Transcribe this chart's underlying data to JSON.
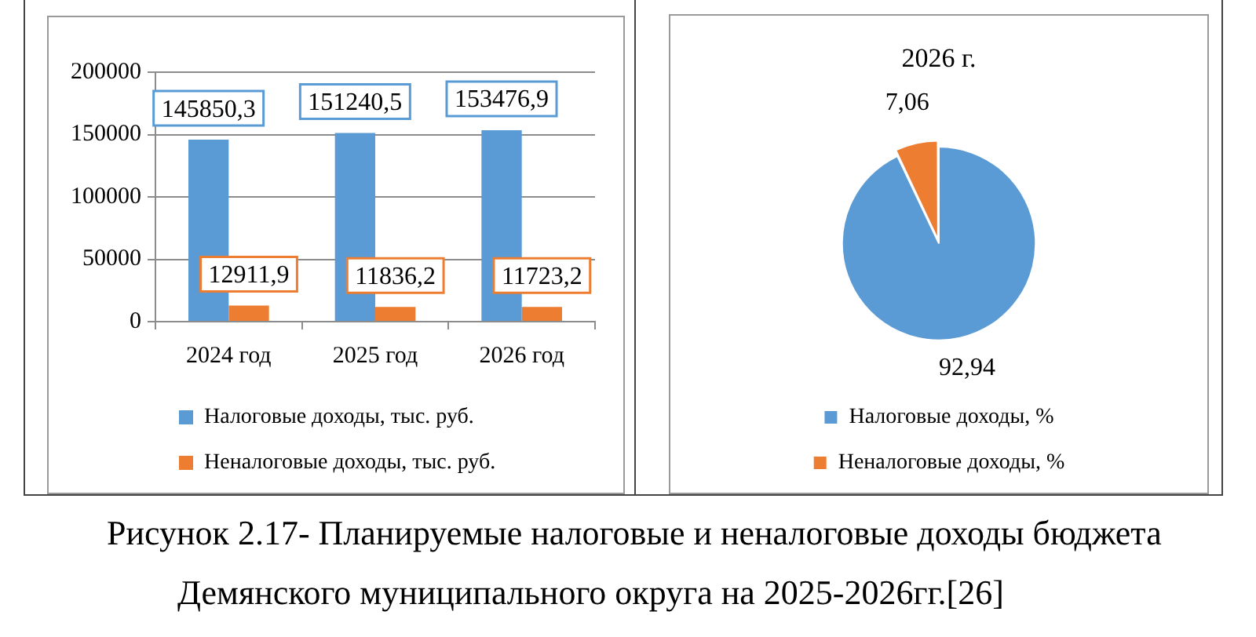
{
  "chart_data": [
    {
      "type": "bar",
      "categories": [
        "2024 год",
        "2025 год",
        "2026 год"
      ],
      "series": [
        {
          "name": "Налоговые доходы, тыс. руб.",
          "color": "#5b9bd5",
          "values": [
            145850.3,
            151240.5,
            153476.9
          ],
          "value_labels": [
            "145850,3",
            "151240,5",
            "153476,9"
          ]
        },
        {
          "name": "Неналоговые доходы, тыс. руб.",
          "color": "#ed7d31",
          "values": [
            12911.9,
            11836.2,
            11723.2
          ],
          "value_labels": [
            "12911,9",
            "11836,2",
            "11723,2"
          ]
        }
      ],
      "ylim": [
        0,
        200000
      ],
      "yticks": [
        0,
        50000,
        100000,
        150000,
        200000
      ],
      "grid": "y",
      "legend": "bottom",
      "annotations": [
        "Рисунок 2.17- Планируемые налоговые и неналоговые доходы бюджета Демянского муниципального округа на 2025-2026гг.[26]"
      ]
    },
    {
      "type": "pie",
      "title": "2026 г.",
      "categories": [
        "Налоговые доходы, %",
        "Неналоговые доходы, %"
      ],
      "values": [
        92.94,
        7.06
      ],
      "colors": [
        "#5b9bd5",
        "#ed7d31"
      ],
      "value_labels": [
        "92,94",
        "7,06"
      ],
      "legend": "bottom"
    }
  ]
}
